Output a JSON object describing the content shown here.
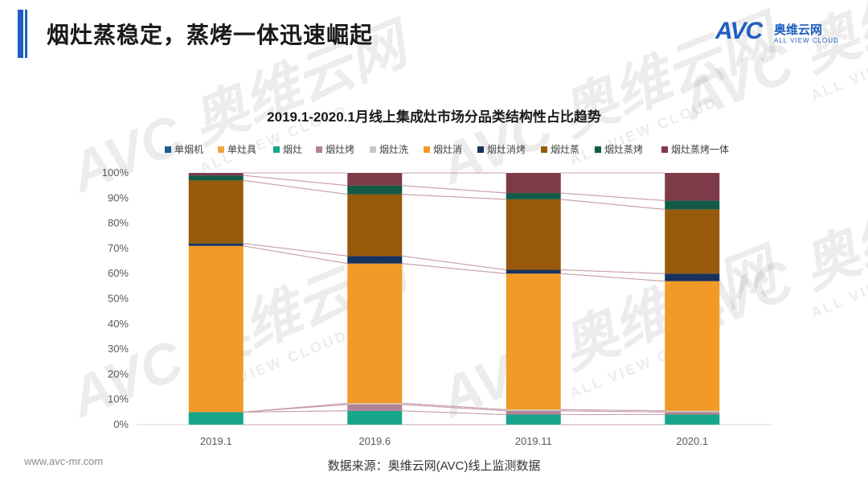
{
  "page": {
    "title": "烟灶蒸稳定，蒸烤一体迅速崛起",
    "logo_main": "AVC",
    "logo_cn": "奥维云网",
    "logo_sub": "ALL VIEW CLOUD",
    "footer_url": "www.avc-mr.com",
    "footer_source": "数据来源：奥维云网(AVC)线上监测数据",
    "watermark_main": "AVC 奥维云网",
    "watermark_sub": "ALL VIEW CLOUD"
  },
  "colors": {
    "accent": "#1f5fbf"
  },
  "chart_data": {
    "type": "bar",
    "stacked": true,
    "percent": true,
    "title": "2019.1-2020.1月线上集成灶市场分品类结构性占比趋势",
    "categories": [
      "2019.1",
      "2019.6",
      "2019.11",
      "2020.1"
    ],
    "ylim": [
      0,
      100
    ],
    "yticks": [
      0,
      10,
      20,
      30,
      40,
      50,
      60,
      70,
      80,
      90,
      100
    ],
    "ytick_suffix": "%",
    "legend_position": "top",
    "series": [
      {
        "name": "单烟机",
        "color": "#1f5a8c",
        "values": [
          0.0,
          0.0,
          0.0,
          0.0
        ]
      },
      {
        "name": "单灶具",
        "color": "#f2a53a",
        "values": [
          0.0,
          0.0,
          0.0,
          0.0
        ]
      },
      {
        "name": "烟灶",
        "color": "#17a68b",
        "values": [
          5.0,
          5.5,
          4.0,
          4.0
        ]
      },
      {
        "name": "烟灶烤",
        "color": "#b38295",
        "values": [
          0.0,
          2.5,
          1.5,
          1.0
        ]
      },
      {
        "name": "烟灶洗",
        "color": "#c8c8c8",
        "values": [
          0.0,
          0.5,
          0.5,
          0.5
        ]
      },
      {
        "name": "烟灶消",
        "color": "#f29a27",
        "values": [
          66.0,
          55.5,
          54.0,
          51.5
        ]
      },
      {
        "name": "烟灶消烤",
        "color": "#17325c",
        "values": [
          1.0,
          3.0,
          1.5,
          3.0
        ]
      },
      {
        "name": "烟灶蒸",
        "color": "#975a0a",
        "values": [
          25.0,
          24.5,
          28.0,
          25.5
        ]
      },
      {
        "name": "烟灶蒸烤",
        "color": "#125a45",
        "values": [
          2.0,
          3.5,
          2.5,
          3.5
        ]
      },
      {
        "name": "烟灶蒸烤一体",
        "color": "#7d3b49",
        "values": [
          1.0,
          5.0,
          8.0,
          11.0
        ]
      }
    ]
  }
}
